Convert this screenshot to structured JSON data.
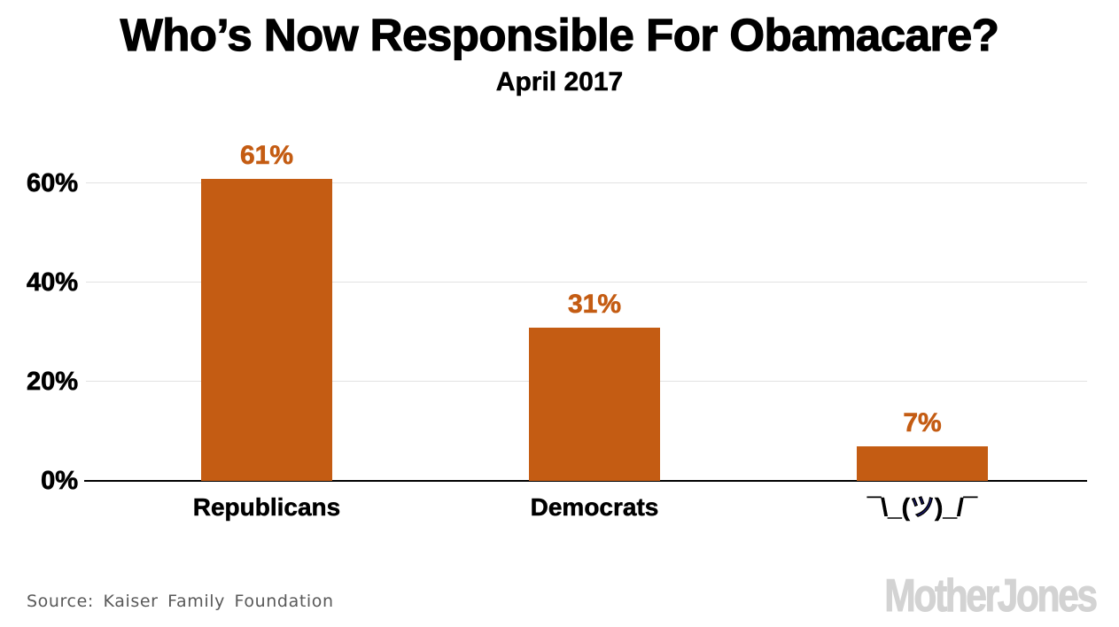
{
  "header": {
    "title": "Who’s Now Responsible For Obamacare?",
    "subtitle": "April 2017"
  },
  "chart_data": {
    "type": "bar",
    "title": "Who’s Now Responsible For Obamacare?",
    "subtitle": "April 2017",
    "categories": [
      "Republicans",
      "Democrats",
      "¯\\_(ツ)_/¯"
    ],
    "values": [
      61,
      31,
      7
    ],
    "value_labels": [
      "61%",
      "31%",
      "7%"
    ],
    "xlabel": "",
    "ylabel": "",
    "ylim": [
      0,
      65
    ],
    "yticks": [
      0,
      20,
      40,
      60
    ],
    "ytick_labels": [
      "0%",
      "20%",
      "40%",
      "60%"
    ],
    "grid": "horizontal-light",
    "legend": "none",
    "bar_color": "#c45c13",
    "value_label_color": "#c45c13",
    "grid_color": "#e2e2e2",
    "axis_color": "#000000",
    "shrug_tsu_color": "#22229a"
  },
  "footer": {
    "source": "Source: Kaiser Family Foundation",
    "brand": "MotherJones"
  },
  "colors": {
    "background": "#ffffff",
    "accent_orange": "#c45c13",
    "source_text": "#595959",
    "brand_gray": "#d3d3d3"
  }
}
